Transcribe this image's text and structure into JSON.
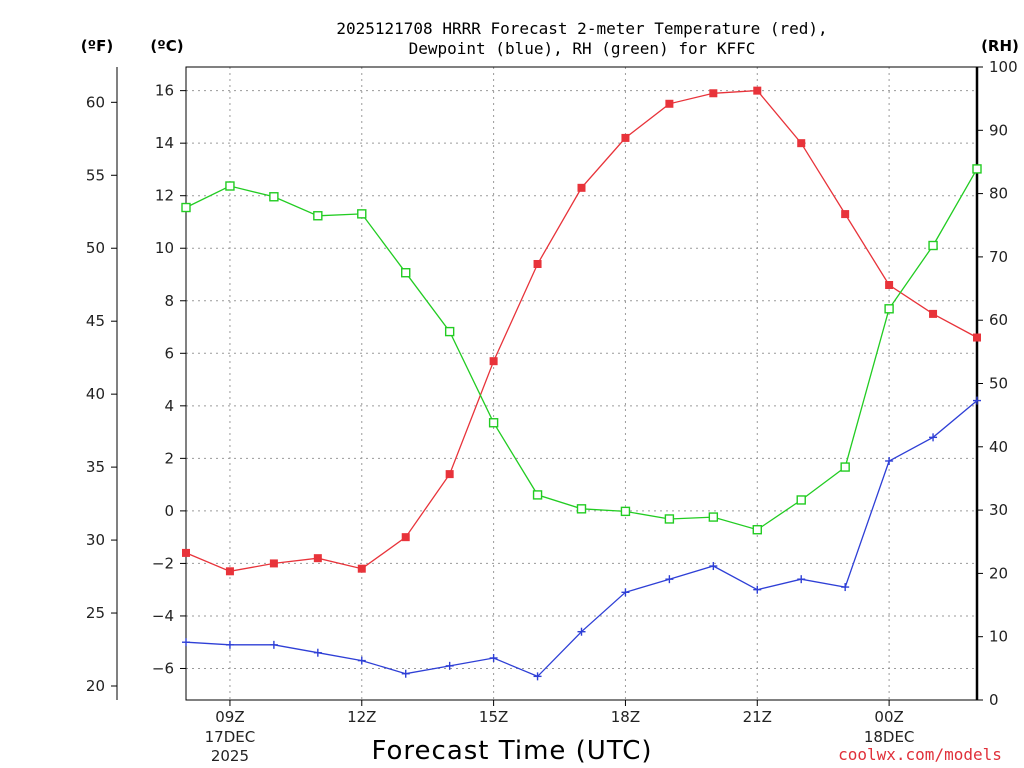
{
  "title": {
    "line1": "2025121708 HRRR Forecast 2-meter Temperature (red),",
    "line2": "Dewpoint (blue), RH (green) for KFFC"
  },
  "units": {
    "fahrenheit": "(ºF)",
    "celsius": "(ºC)",
    "rh": "(RH)"
  },
  "credit": "coolwx.com/models",
  "chart_data": {
    "type": "line",
    "title": "2025121708 HRRR Forecast 2-meter Temperature (red), Dewpoint (blue), RH (green) for KFFC",
    "xlabel": "Forecast Time (UTC)",
    "x_hours_utc": [
      "08Z",
      "09Z",
      "10Z",
      "11Z",
      "12Z",
      "13Z",
      "14Z",
      "15Z",
      "16Z",
      "17Z",
      "18Z",
      "19Z",
      "20Z",
      "21Z",
      "22Z",
      "23Z",
      "00Z",
      "01Z",
      "02Z"
    ],
    "x_ticks": [
      {
        "label": "09Z",
        "date": "17DEC",
        "year": "2025",
        "index": 1
      },
      {
        "label": "12Z",
        "date": "",
        "year": "",
        "index": 4
      },
      {
        "label": "15Z",
        "date": "",
        "year": "",
        "index": 7
      },
      {
        "label": "18Z",
        "date": "",
        "year": "",
        "index": 10
      },
      {
        "label": "21Z",
        "date": "",
        "year": "",
        "index": 13
      },
      {
        "label": "00Z",
        "date": "18DEC",
        "year": "",
        "index": 16
      }
    ],
    "y_celsius": {
      "range": [
        -7.2,
        16.9
      ],
      "ticks": [
        -6,
        -4,
        -2,
        0,
        2,
        4,
        6,
        8,
        10,
        12,
        14,
        16
      ]
    },
    "y_fahrenheit": {
      "ticks": [
        20,
        25,
        30,
        35,
        40,
        45,
        50,
        55,
        60
      ]
    },
    "y_rh": {
      "range": [
        0,
        100
      ],
      "ticks": [
        0,
        10,
        20,
        30,
        40,
        50,
        60,
        70,
        80,
        90,
        100
      ]
    },
    "grid": true,
    "series": [
      {
        "name": "Temperature",
        "axis": "celsius",
        "color": "#e8333a",
        "marker": "filled-square",
        "values": [
          -1.6,
          -2.3,
          -2.0,
          -1.8,
          -2.2,
          -1.0,
          1.4,
          5.7,
          9.4,
          12.3,
          14.2,
          15.5,
          15.9,
          16.0,
          14.0,
          11.3,
          8.6,
          7.5,
          6.6
        ]
      },
      {
        "name": "Dewpoint",
        "axis": "celsius",
        "color": "#2e3fd6",
        "marker": "plus",
        "values": [
          -5.0,
          -5.1,
          -5.1,
          -5.4,
          -5.7,
          -6.2,
          -5.9,
          -5.6,
          -6.3,
          -4.6,
          -3.1,
          -2.6,
          -2.1,
          -3.0,
          -2.6,
          -2.9,
          1.9,
          2.8,
          4.2
        ]
      },
      {
        "name": "RH",
        "axis": "rh",
        "color": "#22cc22",
        "marker": "open-square",
        "values": [
          77.8,
          81.2,
          79.5,
          76.5,
          76.8,
          67.5,
          58.2,
          43.8,
          32.4,
          30.2,
          29.8,
          28.6,
          28.9,
          26.9,
          31.6,
          36.8,
          61.8,
          71.8,
          83.9
        ]
      }
    ]
  }
}
